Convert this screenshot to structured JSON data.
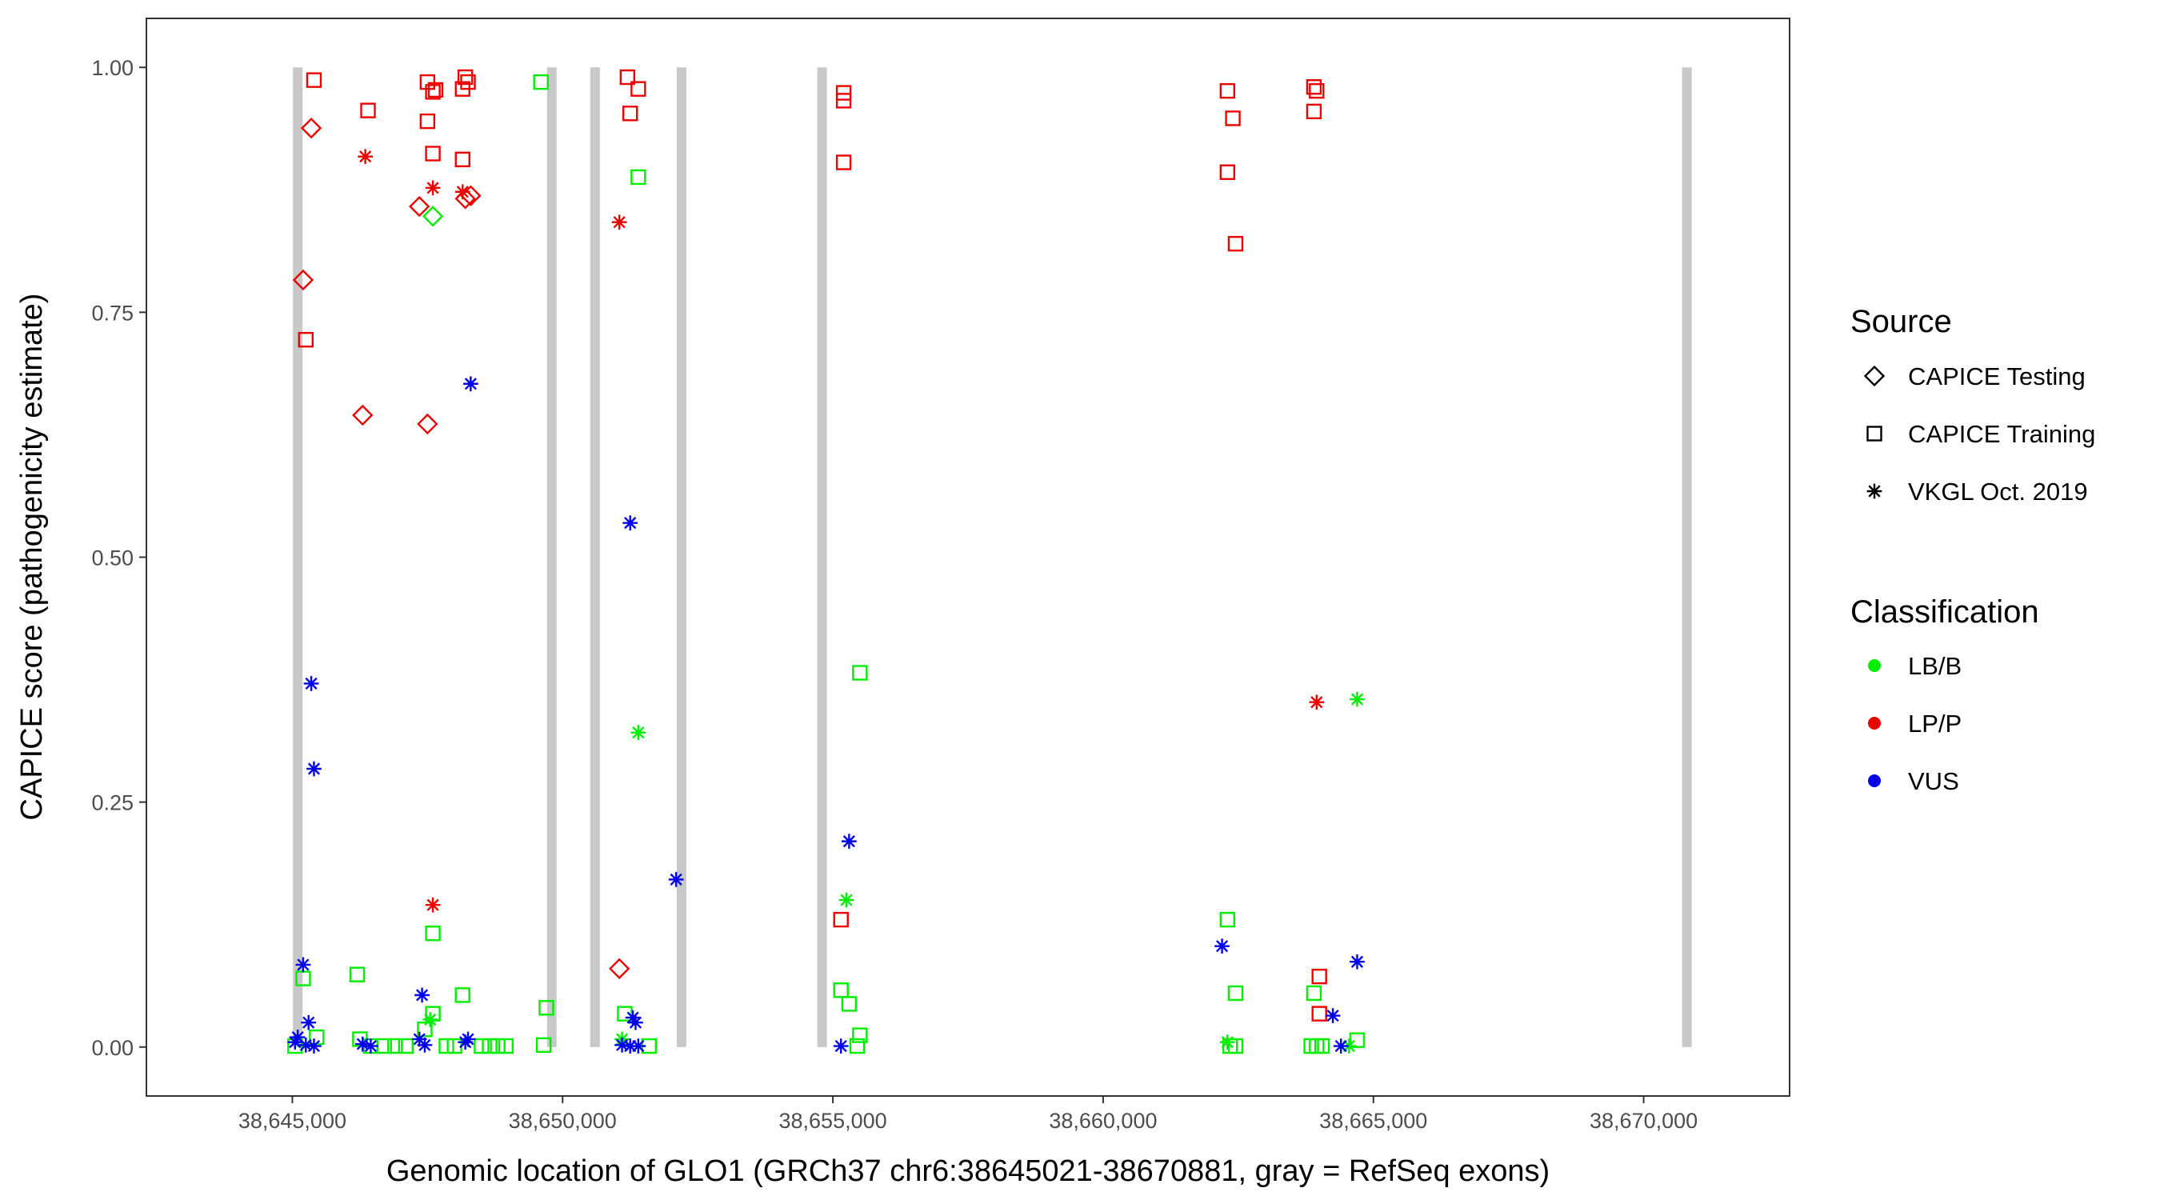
{
  "chart_data": {
    "type": "scatter",
    "xlabel": "Genomic location of GLO1 (GRCh37 chr6:38645021-38670881, gray = RefSeq exons)",
    "ylabel": "CAPICE score (pathogenicity estimate)",
    "xlim": [
      38642300,
      38672700
    ],
    "ylim": [
      -0.05,
      1.05
    ],
    "x_ticks": [
      38645000,
      38650000,
      38655000,
      38660000,
      38665000,
      38670000
    ],
    "x_tick_labels": [
      "38,645,000",
      "38,650,000",
      "38,655,000",
      "38,660,000",
      "38,665,000",
      "38,670,000"
    ],
    "y_ticks": [
      0,
      0.25,
      0.5,
      0.75,
      1
    ],
    "y_tick_labels": [
      "0.00",
      "0.25",
      "0.50",
      "0.75",
      "1.00"
    ],
    "grid": false,
    "exons": [
      38645100,
      38649800,
      38650600,
      38652200,
      38654800,
      38670800
    ],
    "exon_color": "#c8c8c8",
    "legend_placement": "right",
    "legend": {
      "source_title": "Source",
      "source_items": [
        {
          "label": "CAPICE Testing",
          "shape": "diamond"
        },
        {
          "label": "CAPICE Training",
          "shape": "square"
        },
        {
          "label": "VKGL Oct. 2019",
          "shape": "asterisk"
        }
      ],
      "class_title": "Classification",
      "class_items": [
        {
          "label": "LB/B",
          "color": "#00ee00"
        },
        {
          "label": "LP/P",
          "color": "#ee0000"
        },
        {
          "label": "VUS",
          "color": "#0000ee"
        }
      ]
    },
    "colors": {
      "LB/B": "#00ee00",
      "LP/P": "#ee0000",
      "VUS": "#0000ee"
    },
    "points": [
      {
        "x": 38645400,
        "y": 0.987,
        "source": "square",
        "cls": "LP/P"
      },
      {
        "x": 38645350,
        "y": 0.938,
        "source": "diamond",
        "cls": "LP/P"
      },
      {
        "x": 38645200,
        "y": 0.783,
        "source": "diamond",
        "cls": "LP/P"
      },
      {
        "x": 38645250,
        "y": 0.722,
        "source": "square",
        "cls": "LP/P"
      },
      {
        "x": 38646400,
        "y": 0.956,
        "source": "square",
        "cls": "LP/P"
      },
      {
        "x": 38646350,
        "y": 0.909,
        "source": "asterisk",
        "cls": "LP/P"
      },
      {
        "x": 38646300,
        "y": 0.645,
        "source": "diamond",
        "cls": "LP/P"
      },
      {
        "x": 38647500,
        "y": 0.985,
        "source": "square",
        "cls": "LP/P"
      },
      {
        "x": 38647650,
        "y": 0.977,
        "source": "square",
        "cls": "LP/P"
      },
      {
        "x": 38647600,
        "y": 0.975,
        "source": "square",
        "cls": "LP/P"
      },
      {
        "x": 38647500,
        "y": 0.945,
        "source": "square",
        "cls": "LP/P"
      },
      {
        "x": 38647600,
        "y": 0.912,
        "source": "square",
        "cls": "LP/P"
      },
      {
        "x": 38647600,
        "y": 0.877,
        "source": "asterisk",
        "cls": "LP/P"
      },
      {
        "x": 38647350,
        "y": 0.858,
        "source": "diamond",
        "cls": "LP/P"
      },
      {
        "x": 38647500,
        "y": 0.636,
        "source": "diamond",
        "cls": "LP/P"
      },
      {
        "x": 38647600,
        "y": 0.145,
        "source": "asterisk",
        "cls": "LP/P"
      },
      {
        "x": 38648200,
        "y": 0.99,
        "source": "square",
        "cls": "LP/P"
      },
      {
        "x": 38648250,
        "y": 0.985,
        "source": "square",
        "cls": "LP/P"
      },
      {
        "x": 38648150,
        "y": 0.978,
        "source": "square",
        "cls": "LP/P"
      },
      {
        "x": 38648150,
        "y": 0.906,
        "source": "square",
        "cls": "LP/P"
      },
      {
        "x": 38648150,
        "y": 0.873,
        "source": "asterisk",
        "cls": "LP/P"
      },
      {
        "x": 38648200,
        "y": 0.866,
        "source": "diamond",
        "cls": "LP/P"
      },
      {
        "x": 38648300,
        "y": 0.869,
        "source": "diamond",
        "cls": "LP/P"
      },
      {
        "x": 38651200,
        "y": 0.99,
        "source": "square",
        "cls": "LP/P"
      },
      {
        "x": 38651400,
        "y": 0.978,
        "source": "square",
        "cls": "LP/P"
      },
      {
        "x": 38651250,
        "y": 0.953,
        "source": "square",
        "cls": "LP/P"
      },
      {
        "x": 38651050,
        "y": 0.842,
        "source": "asterisk",
        "cls": "LP/P"
      },
      {
        "x": 38651050,
        "y": 0.08,
        "source": "diamond",
        "cls": "LP/P"
      },
      {
        "x": 38655200,
        "y": 0.974,
        "source": "square",
        "cls": "LP/P"
      },
      {
        "x": 38655200,
        "y": 0.966,
        "source": "square",
        "cls": "LP/P"
      },
      {
        "x": 38655200,
        "y": 0.903,
        "source": "square",
        "cls": "LP/P"
      },
      {
        "x": 38655150,
        "y": 0.13,
        "source": "square",
        "cls": "LP/P"
      },
      {
        "x": 38662300,
        "y": 0.976,
        "source": "square",
        "cls": "LP/P"
      },
      {
        "x": 38662400,
        "y": 0.948,
        "source": "square",
        "cls": "LP/P"
      },
      {
        "x": 38662300,
        "y": 0.893,
        "source": "square",
        "cls": "LP/P"
      },
      {
        "x": 38662450,
        "y": 0.82,
        "source": "square",
        "cls": "LP/P"
      },
      {
        "x": 38663900,
        "y": 0.98,
        "source": "square",
        "cls": "LP/P"
      },
      {
        "x": 38663950,
        "y": 0.976,
        "source": "square",
        "cls": "LP/P"
      },
      {
        "x": 38663900,
        "y": 0.955,
        "source": "square",
        "cls": "LP/P"
      },
      {
        "x": 38663950,
        "y": 0.352,
        "source": "asterisk",
        "cls": "LP/P"
      },
      {
        "x": 38664000,
        "y": 0.072,
        "source": "square",
        "cls": "LP/P"
      },
      {
        "x": 38664000,
        "y": 0.034,
        "source": "square",
        "cls": "LP/P"
      },
      {
        "x": 38647600,
        "y": 0.848,
        "source": "diamond",
        "cls": "LB/B"
      },
      {
        "x": 38647600,
        "y": 0.116,
        "source": "square",
        "cls": "LB/B"
      },
      {
        "x": 38647600,
        "y": 0.034,
        "source": "square",
        "cls": "LB/B"
      },
      {
        "x": 38647550,
        "y": 0.028,
        "source": "asterisk",
        "cls": "LB/B"
      },
      {
        "x": 38647450,
        "y": 0.018,
        "source": "square",
        "cls": "LB/B"
      },
      {
        "x": 38648150,
        "y": 0.053,
        "source": "square",
        "cls": "LB/B"
      },
      {
        "x": 38649600,
        "y": 0.985,
        "source": "square",
        "cls": "LB/B"
      },
      {
        "x": 38649700,
        "y": 0.04,
        "source": "square",
        "cls": "LB/B"
      },
      {
        "x": 38649650,
        "y": 0.002,
        "source": "square",
        "cls": "LB/B"
      },
      {
        "x": 38651400,
        "y": 0.888,
        "source": "square",
        "cls": "LB/B"
      },
      {
        "x": 38651400,
        "y": 0.321,
        "source": "asterisk",
        "cls": "LB/B"
      },
      {
        "x": 38651150,
        "y": 0.034,
        "source": "square",
        "cls": "LB/B"
      },
      {
        "x": 38651100,
        "y": 0.008,
        "source": "asterisk",
        "cls": "LB/B"
      },
      {
        "x": 38651600,
        "y": 0.001,
        "source": "square",
        "cls": "LB/B"
      },
      {
        "x": 38645200,
        "y": 0.07,
        "source": "square",
        "cls": "LB/B"
      },
      {
        "x": 38645450,
        "y": 0.01,
        "source": "square",
        "cls": "LB/B"
      },
      {
        "x": 38646200,
        "y": 0.074,
        "source": "square",
        "cls": "LB/B"
      },
      {
        "x": 38646250,
        "y": 0.008,
        "source": "square",
        "cls": "LB/B"
      },
      {
        "x": 38646450,
        "y": 0.001,
        "source": "square",
        "cls": "LB/B"
      },
      {
        "x": 38646700,
        "y": 0.001,
        "source": "square",
        "cls": "LB/B"
      },
      {
        "x": 38646900,
        "y": 0.001,
        "source": "square",
        "cls": "LB/B"
      },
      {
        "x": 38647100,
        "y": 0.001,
        "source": "square",
        "cls": "LB/B"
      },
      {
        "x": 38647850,
        "y": 0.001,
        "source": "square",
        "cls": "LB/B"
      },
      {
        "x": 38648000,
        "y": 0.001,
        "source": "square",
        "cls": "LB/B"
      },
      {
        "x": 38648500,
        "y": 0.001,
        "source": "square",
        "cls": "LB/B"
      },
      {
        "x": 38648650,
        "y": 0.001,
        "source": "square",
        "cls": "LB/B"
      },
      {
        "x": 38648800,
        "y": 0.001,
        "source": "square",
        "cls": "LB/B"
      },
      {
        "x": 38648950,
        "y": 0.001,
        "source": "square",
        "cls": "LB/B"
      },
      {
        "x": 38645050,
        "y": 0.001,
        "source": "square",
        "cls": "LB/B"
      },
      {
        "x": 38655500,
        "y": 0.382,
        "source": "square",
        "cls": "LB/B"
      },
      {
        "x": 38655250,
        "y": 0.15,
        "source": "asterisk",
        "cls": "LB/B"
      },
      {
        "x": 38655150,
        "y": 0.058,
        "source": "square",
        "cls": "LB/B"
      },
      {
        "x": 38655300,
        "y": 0.044,
        "source": "square",
        "cls": "LB/B"
      },
      {
        "x": 38655500,
        "y": 0.012,
        "source": "square",
        "cls": "LB/B"
      },
      {
        "x": 38655450,
        "y": 0.001,
        "source": "square",
        "cls": "LB/B"
      },
      {
        "x": 38662300,
        "y": 0.13,
        "source": "square",
        "cls": "LB/B"
      },
      {
        "x": 38662450,
        "y": 0.055,
        "source": "square",
        "cls": "LB/B"
      },
      {
        "x": 38662300,
        "y": 0.005,
        "source": "asterisk",
        "cls": "LB/B"
      },
      {
        "x": 38662350,
        "y": 0.001,
        "source": "square",
        "cls": "LB/B"
      },
      {
        "x": 38662450,
        "y": 0.001,
        "source": "square",
        "cls": "LB/B"
      },
      {
        "x": 38663900,
        "y": 0.055,
        "source": "square",
        "cls": "LB/B"
      },
      {
        "x": 38663850,
        "y": 0.001,
        "source": "square",
        "cls": "LB/B"
      },
      {
        "x": 38663950,
        "y": 0.001,
        "source": "square",
        "cls": "LB/B"
      },
      {
        "x": 38664050,
        "y": 0.001,
        "source": "square",
        "cls": "LB/B"
      },
      {
        "x": 38664700,
        "y": 0.355,
        "source": "asterisk",
        "cls": "LB/B"
      },
      {
        "x": 38664700,
        "y": 0.007,
        "source": "square",
        "cls": "LB/B"
      },
      {
        "x": 38664550,
        "y": 0.001,
        "source": "asterisk",
        "cls": "LB/B"
      },
      {
        "x": 38645350,
        "y": 0.371,
        "source": "asterisk",
        "cls": "VUS"
      },
      {
        "x": 38645400,
        "y": 0.284,
        "source": "asterisk",
        "cls": "VUS"
      },
      {
        "x": 38645200,
        "y": 0.084,
        "source": "asterisk",
        "cls": "VUS"
      },
      {
        "x": 38645300,
        "y": 0.025,
        "source": "asterisk",
        "cls": "VUS"
      },
      {
        "x": 38645100,
        "y": 0.01,
        "source": "asterisk",
        "cls": "VUS"
      },
      {
        "x": 38645050,
        "y": 0.005,
        "source": "asterisk",
        "cls": "VUS"
      },
      {
        "x": 38645250,
        "y": 0.002,
        "source": "asterisk",
        "cls": "VUS"
      },
      {
        "x": 38645400,
        "y": 0.001,
        "source": "asterisk",
        "cls": "VUS"
      },
      {
        "x": 38646300,
        "y": 0.003,
        "source": "asterisk",
        "cls": "VUS"
      },
      {
        "x": 38646450,
        "y": 0.001,
        "source": "asterisk",
        "cls": "VUS"
      },
      {
        "x": 38647400,
        "y": 0.053,
        "source": "asterisk",
        "cls": "VUS"
      },
      {
        "x": 38647350,
        "y": 0.008,
        "source": "asterisk",
        "cls": "VUS"
      },
      {
        "x": 38647450,
        "y": 0.002,
        "source": "asterisk",
        "cls": "VUS"
      },
      {
        "x": 38648300,
        "y": 0.677,
        "source": "asterisk",
        "cls": "VUS"
      },
      {
        "x": 38648250,
        "y": 0.008,
        "source": "asterisk",
        "cls": "VUS"
      },
      {
        "x": 38648200,
        "y": 0.005,
        "source": "asterisk",
        "cls": "VUS"
      },
      {
        "x": 38651250,
        "y": 0.535,
        "source": "asterisk",
        "cls": "VUS"
      },
      {
        "x": 38651300,
        "y": 0.03,
        "source": "asterisk",
        "cls": "VUS"
      },
      {
        "x": 38651350,
        "y": 0.025,
        "source": "asterisk",
        "cls": "VUS"
      },
      {
        "x": 38651100,
        "y": 0.002,
        "source": "asterisk",
        "cls": "VUS"
      },
      {
        "x": 38651250,
        "y": 0.001,
        "source": "asterisk",
        "cls": "VUS"
      },
      {
        "x": 38651400,
        "y": 0.001,
        "source": "asterisk",
        "cls": "VUS"
      },
      {
        "x": 38652100,
        "y": 0.171,
        "source": "asterisk",
        "cls": "VUS"
      },
      {
        "x": 38655300,
        "y": 0.21,
        "source": "asterisk",
        "cls": "VUS"
      },
      {
        "x": 38655150,
        "y": 0.001,
        "source": "asterisk",
        "cls": "VUS"
      },
      {
        "x": 38662200,
        "y": 0.103,
        "source": "asterisk",
        "cls": "VUS"
      },
      {
        "x": 38664250,
        "y": 0.032,
        "source": "asterisk",
        "cls": "VUS"
      },
      {
        "x": 38664400,
        "y": 0.001,
        "source": "asterisk",
        "cls": "VUS"
      },
      {
        "x": 38664700,
        "y": 0.087,
        "source": "asterisk",
        "cls": "VUS"
      }
    ]
  }
}
